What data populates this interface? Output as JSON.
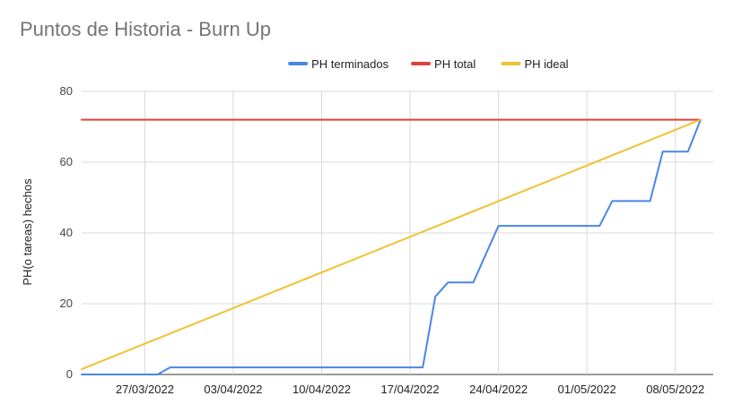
{
  "chart_data": {
    "type": "line",
    "title": "Puntos de Historia - Burn Up",
    "xlabel": "",
    "ylabel": "PH(o tareas) hechos",
    "ylim": [
      0,
      80
    ],
    "yticks": [
      0,
      20,
      40,
      60,
      80
    ],
    "xlim": [
      "2022-03-22",
      "2022-05-11"
    ],
    "x_ticks": [
      {
        "date": "2022-03-27",
        "label": "27/03/2022"
      },
      {
        "date": "2022-04-03",
        "label": "03/04/2022"
      },
      {
        "date": "2022-04-10",
        "label": "10/04/2022"
      },
      {
        "date": "2022-04-17",
        "label": "17/04/2022"
      },
      {
        "date": "2022-04-24",
        "label": "24/04/2022"
      },
      {
        "date": "2022-05-01",
        "label": "01/05/2022"
      },
      {
        "date": "2022-05-08",
        "label": "08/05/2022"
      }
    ],
    "grid": true,
    "legend": "top",
    "series": [
      {
        "name": "PH terminados",
        "color": "#4a86e8",
        "points": [
          [
            "2022-03-22",
            0
          ],
          [
            "2022-03-28",
            0
          ],
          [
            "2022-03-29",
            2
          ],
          [
            "2022-04-18",
            2
          ],
          [
            "2022-04-19",
            22
          ],
          [
            "2022-04-20",
            26
          ],
          [
            "2022-04-22",
            26
          ],
          [
            "2022-04-24",
            42
          ],
          [
            "2022-05-02",
            42
          ],
          [
            "2022-05-03",
            49
          ],
          [
            "2022-05-06",
            49
          ],
          [
            "2022-05-07",
            63
          ],
          [
            "2022-05-09",
            63
          ],
          [
            "2022-05-10",
            72
          ]
        ]
      },
      {
        "name": "PH total",
        "color": "#e2413a",
        "points": [
          [
            "2022-03-22",
            72
          ],
          [
            "2022-05-10",
            72
          ]
        ]
      },
      {
        "name": "PH ideal",
        "color": "#f1c232",
        "points": [
          [
            "2022-03-22",
            1.5
          ],
          [
            "2022-05-10",
            72
          ]
        ]
      }
    ]
  }
}
